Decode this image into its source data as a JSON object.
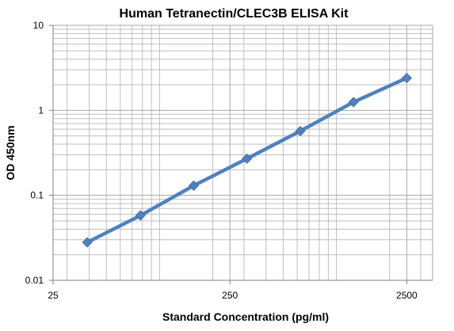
{
  "chart_data": {
    "type": "line",
    "title": "Human Tetranectin/CLEC3B ELISA Kit",
    "xlabel": "Standard Concentration (pg/ml)",
    "ylabel": "OD 450nm",
    "x_scale": "log",
    "y_scale": "log",
    "xlim": [
      25,
      3500
    ],
    "ylim": [
      0.01,
      10
    ],
    "grid": true,
    "legend": "none",
    "x_ticks": [
      25,
      250,
      2500
    ],
    "x_tick_labels": [
      "25",
      "250",
      "2500"
    ],
    "y_ticks": [
      0.01,
      0.1,
      1,
      10
    ],
    "y_tick_labels": [
      "0.01",
      "0.1",
      "1",
      "10"
    ],
    "series": [
      {
        "x": [
          39,
          78,
          156,
          312,
          625,
          1250,
          2500
        ],
        "y": [
          0.028,
          0.058,
          0.13,
          0.27,
          0.57,
          1.25,
          2.4
        ]
      }
    ],
    "colors": {
      "series": "#4f81bd",
      "grid": "#bfbfbf",
      "axis": "#808080"
    }
  }
}
